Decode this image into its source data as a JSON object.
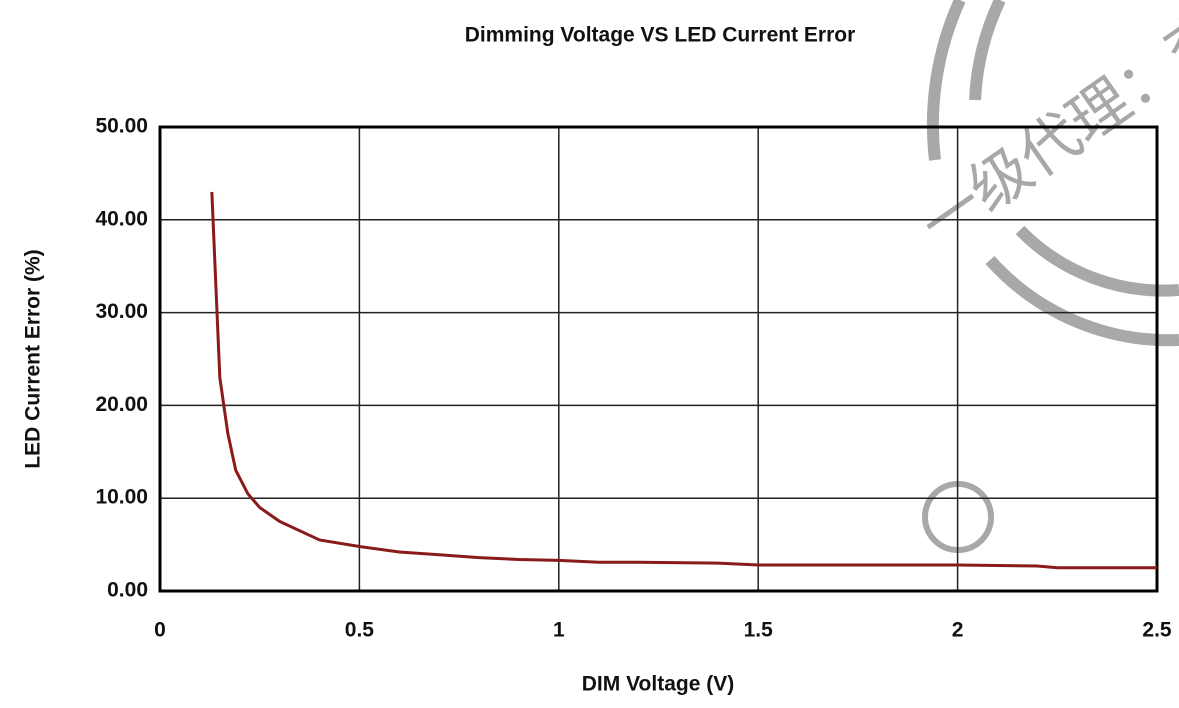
{
  "chart_data": {
    "type": "line",
    "title": "Dimming Voltage VS LED Current Error",
    "x_label": "DIM Voltage (V)",
    "y_label": "LED Current Error (%)",
    "watermark": "一级代理：李",
    "x": [
      0.13,
      0.15,
      0.17,
      0.19,
      0.22,
      0.25,
      0.3,
      0.35,
      0.4,
      0.5,
      0.6,
      0.7,
      0.8,
      0.9,
      1.0,
      1.1,
      1.2,
      1.4,
      1.5,
      1.75,
      2.0,
      2.2,
      2.25,
      2.5
    ],
    "series": [
      {
        "color": "#8b1a1a",
        "values": [
          43,
          23,
          17,
          13,
          10.5,
          9,
          7.5,
          6.5,
          5.5,
          4.8,
          4.2,
          3.9,
          3.6,
          3.4,
          3.3,
          3.1,
          3.1,
          3.0,
          2.8,
          2.8,
          2.8,
          2.7,
          2.5,
          2.5
        ]
      }
    ],
    "xlim": [
      0,
      2.5
    ],
    "xticks": [
      0,
      0.5,
      1,
      1.5,
      2,
      2.5
    ],
    "ylim": [
      0,
      50
    ],
    "yticks": [
      {
        "value": 0,
        "label": "0.00"
      },
      {
        "value": 10,
        "label": "10.00"
      },
      {
        "value": 20,
        "label": "20.00"
      },
      {
        "value": 30,
        "label": "30.00"
      },
      {
        "value": 40,
        "label": "40.00"
      },
      {
        "value": 50,
        "label": "50.00"
      }
    ],
    "grid": true
  }
}
